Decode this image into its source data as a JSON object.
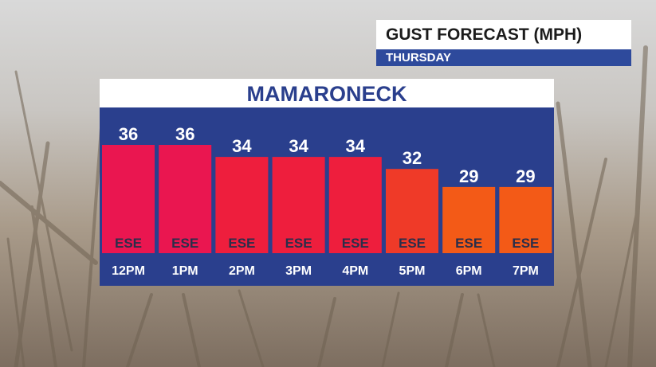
{
  "header": {
    "title": "GUST FORECAST (MPH)",
    "subtitle": "THURSDAY"
  },
  "panel": {
    "title": "MAMARONECK"
  },
  "chart_data": {
    "type": "bar",
    "title": "GUST FORECAST (MPH)",
    "subtitle": "THURSDAY",
    "location": "MAMARONECK",
    "categories": [
      "12PM",
      "1PM",
      "2PM",
      "3PM",
      "4PM",
      "5PM",
      "6PM",
      "7PM"
    ],
    "values": [
      36,
      36,
      34,
      34,
      34,
      32,
      29,
      29
    ],
    "directions": [
      "ESE",
      "ESE",
      "ESE",
      "ESE",
      "ESE",
      "ESE",
      "ESE",
      "ESE"
    ],
    "colors": [
      "#ea1650",
      "#ea1650",
      "#ee1e3d",
      "#ee1e3d",
      "#ee1e3d",
      "#ef3a28",
      "#f35a17",
      "#f35a17"
    ],
    "xlabel": "",
    "ylabel": "",
    "ylim": [
      0,
      40
    ],
    "grid": false,
    "legend": "none"
  }
}
